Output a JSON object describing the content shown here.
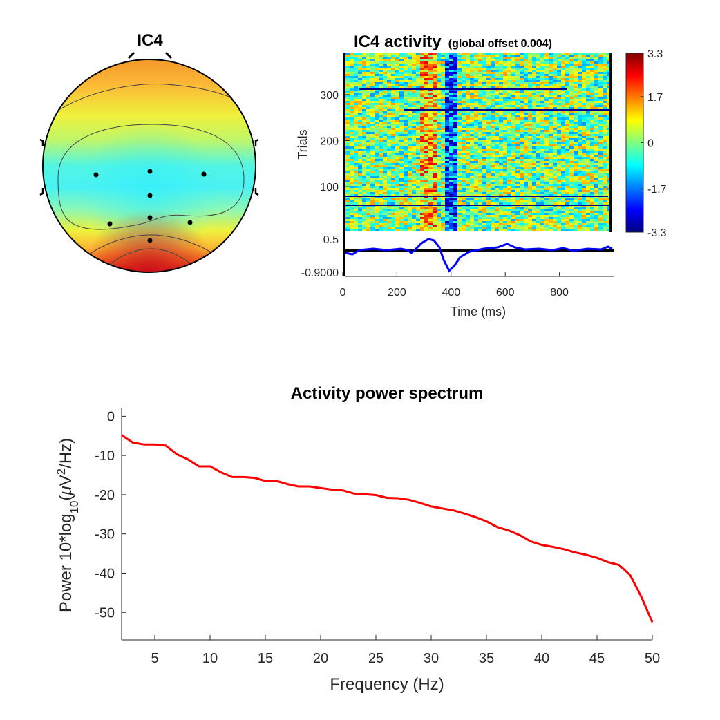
{
  "topo": {
    "title": "IC4",
    "electrodes": 8
  },
  "erpimage": {
    "title": "IC4 activity",
    "subtitle": "(global offset 0.004)",
    "ylabel": "Trials",
    "yticks": [
      "100",
      "200",
      "300"
    ],
    "trial_range": [
      1,
      390
    ],
    "colorbar": {
      "ticks": [
        "3.3",
        "1.7",
        "0",
        "-1.7",
        "-3.3"
      ],
      "range": [
        -3.3,
        3.3
      ],
      "colormap": "jet"
    },
    "erp": {
      "yticks": [
        "0.5",
        "-0.9000"
      ],
      "ylim": [
        -0.9,
        0.5
      ],
      "color": "#0000ff",
      "xlabel": "Time (ms)",
      "xticks": [
        "0",
        "200",
        "400",
        "600",
        "800"
      ],
      "xlim": [
        0,
        1000
      ]
    }
  },
  "chart_data": {
    "type": "line",
    "title": "Activity power spectrum",
    "xlabel": "Frequency (Hz)",
    "ylabel": "Power 10*log10(μV2/Hz)",
    "xlim": [
      2,
      50
    ],
    "ylim": [
      -57,
      2
    ],
    "xticks": [
      5,
      10,
      15,
      20,
      25,
      30,
      35,
      40,
      45,
      50
    ],
    "yticks": [
      0,
      -10,
      -20,
      -30,
      -40,
      -50
    ],
    "color": "#ff0000",
    "x": [
      2,
      3,
      4,
      5,
      6,
      7,
      8,
      9,
      10,
      11,
      12,
      13,
      14,
      15,
      16,
      17,
      18,
      19,
      20,
      21,
      22,
      23,
      24,
      25,
      26,
      27,
      28,
      29,
      30,
      31,
      32,
      33,
      34,
      35,
      36,
      37,
      38,
      39,
      40,
      41,
      42,
      43,
      44,
      45,
      46,
      47,
      48,
      49,
      50
    ],
    "y": [
      -4.8,
      -6.7,
      -7.2,
      -7.2,
      -7.5,
      -9.7,
      -11.0,
      -12.8,
      -12.8,
      -14.3,
      -15.5,
      -15.5,
      -15.7,
      -16.5,
      -16.5,
      -17.3,
      -17.9,
      -17.9,
      -18.3,
      -18.7,
      -18.9,
      -19.7,
      -19.9,
      -20.1,
      -20.8,
      -20.9,
      -21.3,
      -22.1,
      -23.0,
      -23.5,
      -24.0,
      -24.8,
      -25.7,
      -26.8,
      -28.3,
      -29.1,
      -30.3,
      -31.9,
      -32.8,
      -33.3,
      -33.9,
      -34.7,
      -35.3,
      -36.1,
      -37.2,
      -37.9,
      -40.5,
      -46.0,
      -52.5
    ]
  }
}
